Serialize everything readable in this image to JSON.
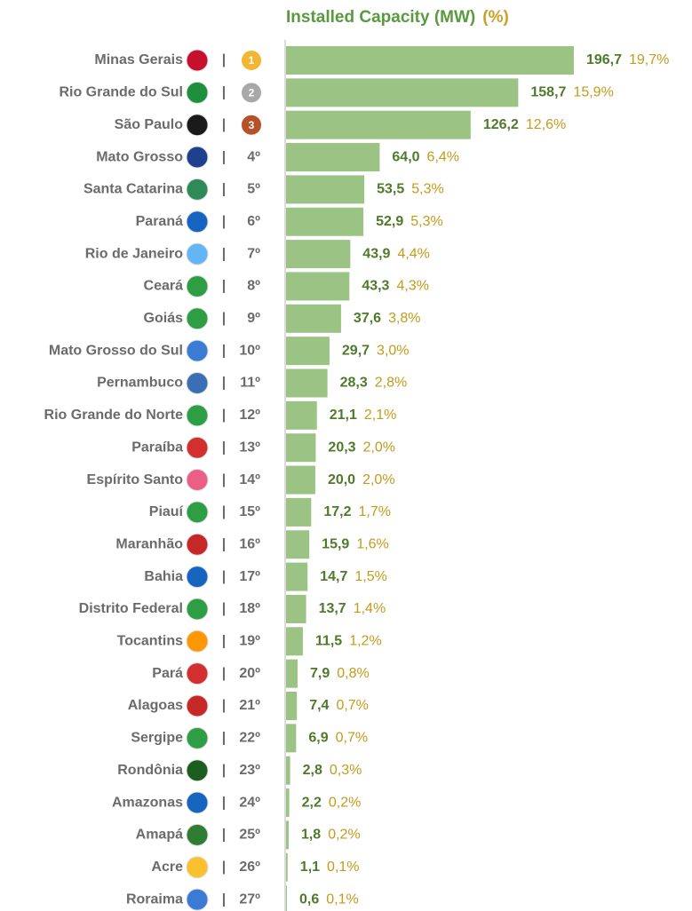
{
  "chart_data": {
    "type": "bar",
    "orientation": "horizontal",
    "title": "Installed Capacity (MW)",
    "share_title": "(%)",
    "separator": "|",
    "color": "#9bc383",
    "categories": [
      "Minas Gerais",
      "Rio Grande do Sul",
      "São Paulo",
      "Mato Grosso",
      "Santa Catarina",
      "Paraná",
      "Rio de Janeiro",
      "Ceará",
      "Goiás",
      "Mato Grosso do Sul",
      "Pernambuco",
      "Rio Grande do Norte",
      "Paraíba",
      "Espírito Santo",
      "Piauí",
      "Maranhão",
      "Bahia",
      "Distrito Federal",
      "Tocantins",
      "Pará",
      "Alagoas",
      "Sergipe",
      "Rondônia",
      "Amazonas",
      "Amapá",
      "Acre",
      "Roraima"
    ],
    "ranks": [
      "1",
      "2",
      "3",
      "4º",
      "5º",
      "6º",
      "7º",
      "8º",
      "9º",
      "10º",
      "11º",
      "12º",
      "13º",
      "14º",
      "15º",
      "16º",
      "17º",
      "18º",
      "19º",
      "20º",
      "21º",
      "22º",
      "23º",
      "24º",
      "25º",
      "26º",
      "27º"
    ],
    "values": [
      196.7,
      158.7,
      126.2,
      64.0,
      53.5,
      52.9,
      43.9,
      43.3,
      37.6,
      29.7,
      28.3,
      21.1,
      20.3,
      20.0,
      17.2,
      15.9,
      14.7,
      13.7,
      11.5,
      7.9,
      7.4,
      6.9,
      2.8,
      2.2,
      1.8,
      1.1,
      0.6
    ],
    "value_labels": [
      "196,7",
      "158,7",
      "126,2",
      "64,0",
      "53,5",
      "52,9",
      "43,9",
      "43,3",
      "37,6",
      "29,7",
      "28,3",
      "21,1",
      "20,3",
      "20,0",
      "17,2",
      "15,9",
      "14,7",
      "13,7",
      "11,5",
      "7,9",
      "7,4",
      "6,9",
      "2,8",
      "2,2",
      "1,8",
      "1,1",
      "0,6"
    ],
    "shares": [
      19.7,
      15.9,
      12.6,
      6.4,
      5.3,
      5.3,
      4.4,
      4.3,
      3.8,
      3.0,
      2.8,
      2.1,
      2.0,
      2.0,
      1.7,
      1.6,
      1.5,
      1.4,
      1.2,
      0.8,
      0.7,
      0.7,
      0.3,
      0.2,
      0.2,
      0.1,
      0.1
    ],
    "share_labels": [
      "19,7%",
      "15,9%",
      "12,6%",
      "6,4%",
      "5,3%",
      "5,3%",
      "4,4%",
      "4,3%",
      "3,8%",
      "3,0%",
      "2,8%",
      "2,1%",
      "2,0%",
      "2,0%",
      "1,7%",
      "1,6%",
      "1,5%",
      "1,4%",
      "1,2%",
      "0,8%",
      "0,7%",
      "0,7%",
      "0,3%",
      "0,2%",
      "0,2%",
      "0,1%",
      "0,1%"
    ],
    "xlim": [
      0,
      200
    ]
  }
}
